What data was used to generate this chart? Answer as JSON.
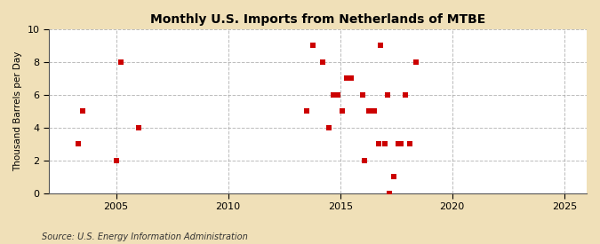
{
  "title": "Monthly U.S. Imports from Netherlands of MTBE",
  "ylabel": "Thousand Barrels per Day",
  "source": "Source: U.S. Energy Information Administration",
  "fig_bg_color": "#f0e0b8",
  "plot_bg_color": "#ffffff",
  "marker_color": "#cc0000",
  "xlim": [
    2002,
    2026
  ],
  "ylim": [
    0,
    10
  ],
  "xticks": [
    2005,
    2010,
    2015,
    2020,
    2025
  ],
  "yticks": [
    0,
    2,
    4,
    6,
    8,
    10
  ],
  "data_points": [
    [
      2003.3,
      3
    ],
    [
      2003.5,
      5
    ],
    [
      2005.0,
      2
    ],
    [
      2005.2,
      8
    ],
    [
      2006.0,
      4
    ],
    [
      2013.5,
      5
    ],
    [
      2013.8,
      9
    ],
    [
      2014.2,
      8
    ],
    [
      2014.5,
      4
    ],
    [
      2014.7,
      6
    ],
    [
      2014.9,
      6
    ],
    [
      2015.1,
      5
    ],
    [
      2015.3,
      7
    ],
    [
      2015.5,
      7
    ],
    [
      2016.0,
      6
    ],
    [
      2016.1,
      2
    ],
    [
      2016.3,
      5
    ],
    [
      2016.5,
      5
    ],
    [
      2016.7,
      3
    ],
    [
      2016.8,
      9
    ],
    [
      2017.0,
      3
    ],
    [
      2017.1,
      6
    ],
    [
      2017.2,
      0
    ],
    [
      2017.4,
      1
    ],
    [
      2017.6,
      3
    ],
    [
      2017.7,
      3
    ],
    [
      2017.9,
      6
    ],
    [
      2018.1,
      3
    ],
    [
      2018.4,
      8
    ]
  ]
}
